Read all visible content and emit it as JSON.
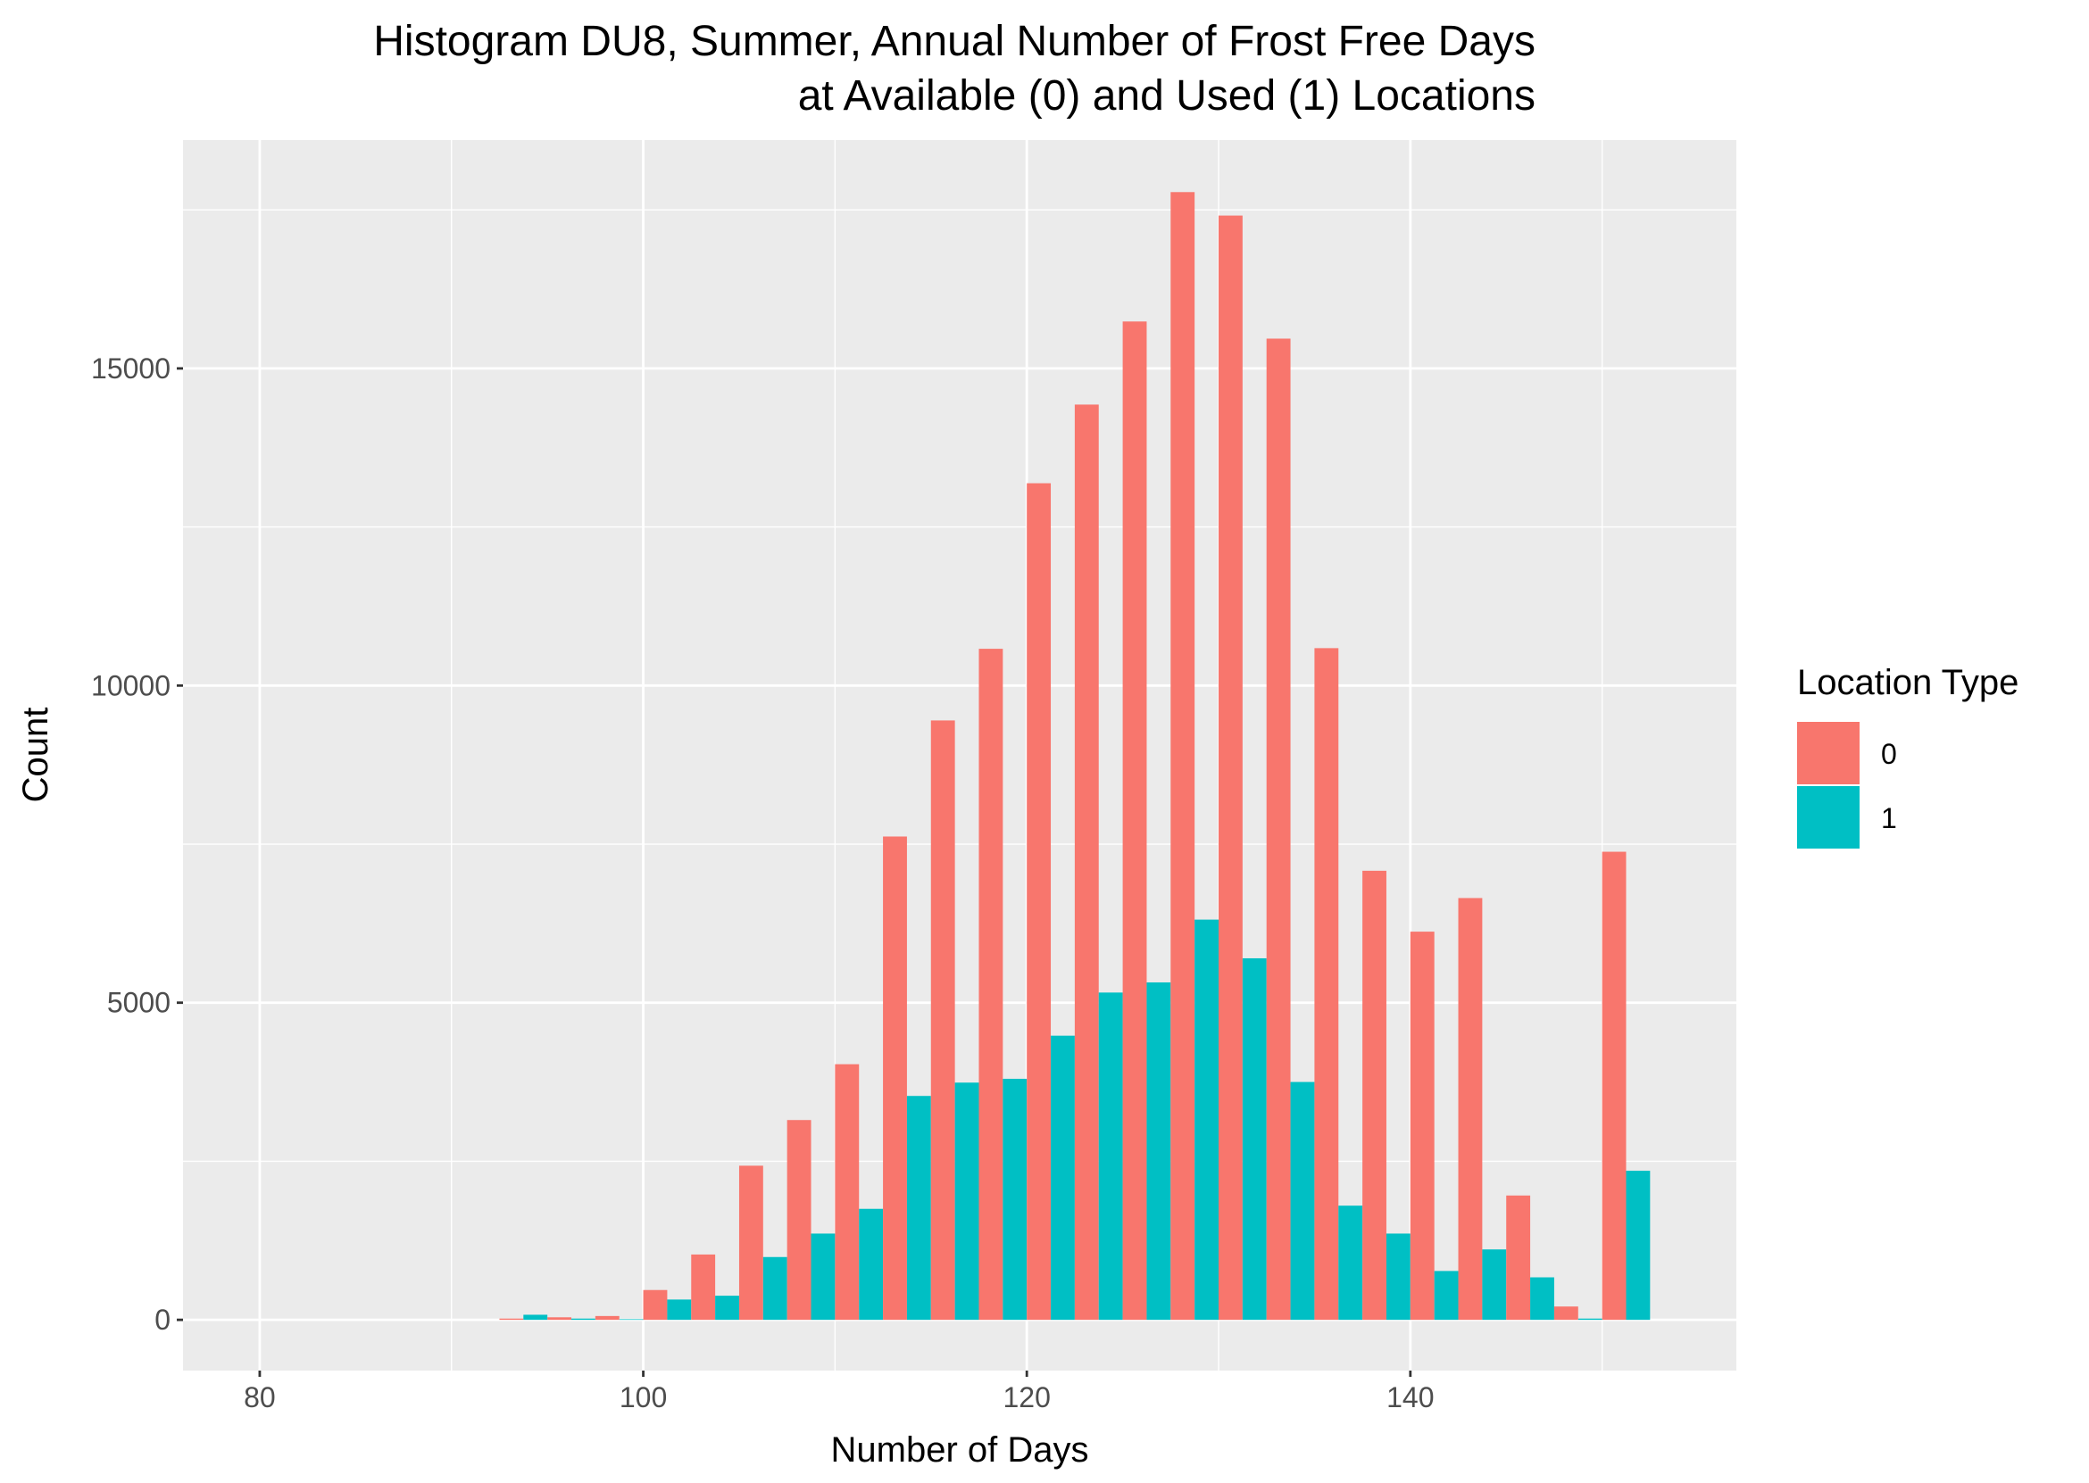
{
  "chart_data": {
    "type": "bar",
    "title": [
      "Histogram DU8, Summer, Annual Number of Frost Free Days",
      "at Available (0) and Used (1) Locations"
    ],
    "xlabel": "Number of Days",
    "ylabel": "Count",
    "xlim": [
      76,
      157
    ],
    "ylim": [
      -800,
      18600
    ],
    "x_ticks": [
      80,
      100,
      120,
      140
    ],
    "y_ticks": [
      0,
      5000,
      10000,
      15000
    ],
    "grid": true,
    "bin_width": 2.5,
    "legend": {
      "title": "Location Type",
      "position": "right",
      "entries": [
        {
          "label": "0",
          "color": "#F8766D"
        },
        {
          "label": "1",
          "color": "#00BFC4"
        }
      ]
    },
    "bin_centers": [
      93.75,
      96.25,
      98.75,
      101.25,
      103.75,
      106.25,
      108.75,
      111.25,
      113.75,
      116.25,
      118.75,
      121.25,
      123.75,
      126.25,
      128.75,
      131.25,
      133.75,
      136.25,
      138.75,
      141.25,
      143.75,
      146.25,
      148.75,
      151.25
    ],
    "series": [
      {
        "name": "0",
        "color": "#F8766D",
        "values": [
          20,
          40,
          60,
          470,
          1030,
          2430,
          3150,
          4030,
          7620,
          9450,
          10580,
          13190,
          14430,
          15740,
          17780,
          17410,
          15470,
          10590,
          7080,
          6120,
          6650,
          1960,
          210,
          7380
        ]
      },
      {
        "name": "1",
        "color": "#00BFC4",
        "values": [
          80,
          20,
          10,
          320,
          380,
          990,
          1360,
          1750,
          3530,
          3740,
          3800,
          4480,
          5160,
          5320,
          6310,
          5700,
          3750,
          1800,
          1360,
          770,
          1110,
          670,
          20,
          2350
        ]
      }
    ]
  }
}
